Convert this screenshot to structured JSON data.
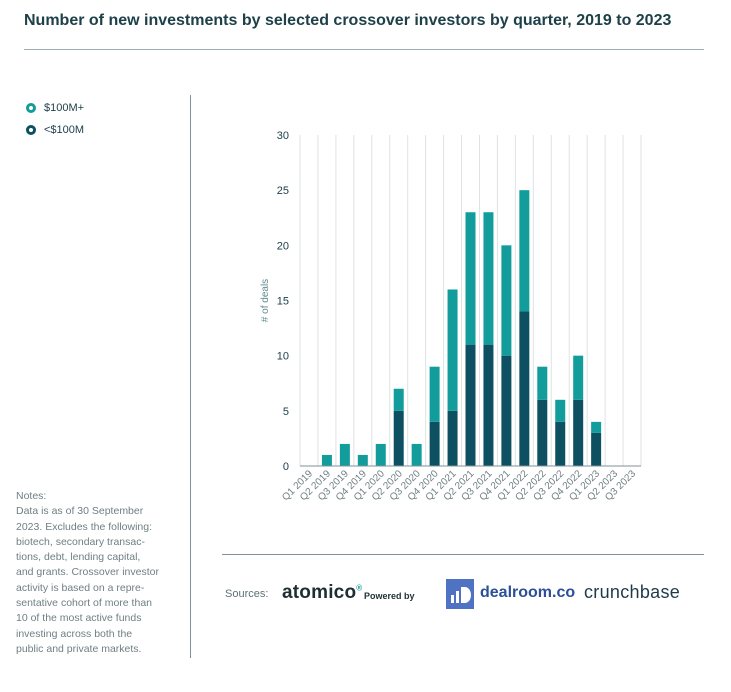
{
  "title": "Number of new investments by selected crossover investors by quarter, 2019 to 2023",
  "legend": [
    {
      "label": "$100M+",
      "color": "#139c9c"
    },
    {
      "label": "<$100M",
      "color": "#0d5062"
    }
  ],
  "notes": [
    "Notes:",
    "Data is as of 30 September",
    "2023. Excludes the following:",
    "biotech, secondary transac-",
    "tions, debt, lending capital,",
    "and grants. Crossover investor",
    "activity is based on a repre-",
    "sentative cohort of more than",
    "10 of the most active funds",
    "investing across both the",
    "public and private markets."
  ],
  "sources": {
    "label": "Sources:",
    "atomico": "atomico",
    "atomico_mark": "®",
    "powered_by": "Powered by",
    "dealroom": "dealroom.co",
    "crunchbase": "crunchbase"
  },
  "colors": {
    "large": "#139c9c",
    "small": "#0d5062",
    "grid": "#dde3e5",
    "axis": "#7f9297"
  },
  "chart_data": {
    "type": "bar",
    "stacked": true,
    "ylabel": "# of deals",
    "xlabel": "",
    "ylim": [
      0,
      30
    ],
    "yticks": [
      0,
      5,
      10,
      15,
      20,
      25,
      30
    ],
    "grid": "vertical",
    "categories": [
      "Q1 2019",
      "Q2 2019",
      "Q3 2019",
      "Q4 2019",
      "Q1 2020",
      "Q2 2020",
      "Q3 2020",
      "Q4 2020",
      "Q1 2021",
      "Q2 2021",
      "Q3 2021",
      "Q4 2021",
      "Q1 2022",
      "Q2 2022",
      "Q3 2022",
      "Q4 2022",
      "Q1 2023",
      "Q2 2023",
      "Q3 2023"
    ],
    "series": [
      {
        "name": "<$100M",
        "values": [
          0,
          0,
          0,
          0,
          0,
          5,
          0,
          4,
          5,
          11,
          11,
          10,
          14,
          6,
          4,
          6,
          3,
          0,
          0
        ]
      },
      {
        "name": "$100M+",
        "values": [
          0,
          1,
          2,
          1,
          2,
          2,
          2,
          5,
          11,
          12,
          12,
          10,
          11,
          3,
          2,
          4,
          1,
          0,
          0
        ]
      }
    ]
  }
}
